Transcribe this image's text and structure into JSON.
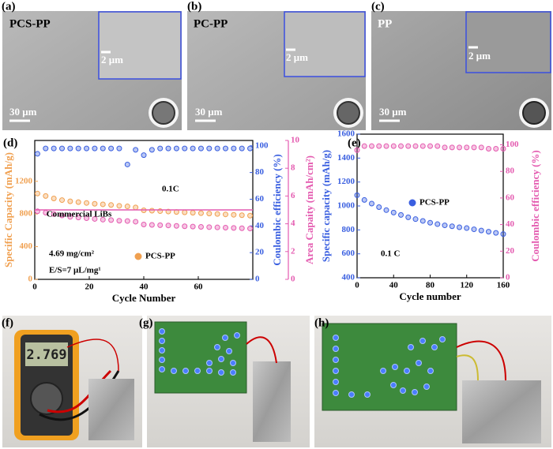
{
  "panel_labels": [
    "(a)",
    "(b)",
    "(c)",
    "(d)",
    "(e)",
    "(f)",
    "(g)",
    "(h)"
  ],
  "sem": [
    {
      "label": "PCS-PP",
      "scale_inset": "2 μm",
      "scale_main": "30 μm"
    },
    {
      "label": "PC-PP",
      "scale_inset": "2 μm",
      "scale_main": "30 μm"
    },
    {
      "label": "PP",
      "scale_inset": "2 μm",
      "scale_main": "30 μm"
    }
  ],
  "multimeter_reading": "2.769",
  "chart_data": [
    {
      "type": "scatter",
      "xlabel": "Cycle Number",
      "ylabel": "Specific Capacity (mAh/g)",
      "y2label": "Coulombic efficiency (%)",
      "y3label": "Area Capaity (mAh/cm²)",
      "xlim": [
        0,
        80
      ],
      "xticks": [
        0,
        20,
        40,
        60
      ],
      "ylim": [
        0,
        1700
      ],
      "yticks": [
        0,
        400,
        800,
        1200
      ],
      "y2lim": [
        0,
        104
      ],
      "y2ticks": [
        0,
        20,
        40,
        60,
        80,
        100
      ],
      "y3lim": [
        0,
        10
      ],
      "y3ticks": [
        0,
        2,
        4,
        6,
        8,
        10
      ],
      "x": [
        1,
        4,
        7,
        10,
        13,
        16,
        19,
        22,
        25,
        28,
        31,
        34,
        37,
        40,
        43,
        46,
        49,
        52,
        55,
        58,
        61,
        64,
        67,
        70,
        73,
        76,
        79
      ],
      "series": [
        {
          "name": "PCS-PP",
          "color": "#f0a050",
          "values": [
            1050,
            1020,
            990,
            970,
            955,
            945,
            935,
            925,
            918,
            910,
            900,
            893,
            880,
            845,
            840,
            835,
            830,
            825,
            820,
            815,
            810,
            805,
            800,
            795,
            790,
            785,
            780
          ]
        },
        {
          "color": "#3a5fe0",
          "axis": "y2",
          "values": [
            94,
            98,
            98,
            98,
            98,
            98,
            98,
            98,
            98,
            98,
            98,
            86,
            97,
            93,
            97,
            98,
            98,
            98,
            98,
            98,
            98,
            98,
            98,
            98,
            98,
            98,
            98
          ]
        },
        {
          "color": "#e45bb0",
          "axis": "y3",
          "values": [
            4.9,
            4.8,
            4.7,
            4.6,
            4.5,
            4.45,
            4.4,
            4.35,
            4.3,
            4.27,
            4.22,
            4.2,
            4.15,
            3.95,
            3.92,
            3.9,
            3.88,
            3.85,
            3.82,
            3.8,
            3.78,
            3.76,
            3.74,
            3.72,
            3.7,
            3.68,
            3.66
          ]
        }
      ],
      "reference_line": {
        "value": 5,
        "axis": "y3",
        "label": "Commercial LiBs"
      },
      "annotations": [
        "0.1C",
        "4.69 mg/cm²",
        "E/S=7 μL/mg¹"
      ]
    },
    {
      "type": "scatter",
      "xlabel": "Cycle number",
      "ylabel": "Specific capacity (mAh/g)",
      "y2label": "Coulombic efficiency (%)",
      "xlim": [
        0,
        160
      ],
      "xticks": [
        0,
        40,
        80,
        120,
        160
      ],
      "ylim": [
        400,
        1600
      ],
      "yticks": [
        400,
        600,
        800,
        1000,
        1200,
        1400,
        1600
      ],
      "y2lim": [
        0,
        108
      ],
      "y2ticks": [
        0,
        20,
        40,
        60,
        80,
        100
      ],
      "x": [
        0,
        8,
        16,
        24,
        32,
        40,
        48,
        56,
        64,
        72,
        80,
        88,
        96,
        104,
        112,
        120,
        128,
        136,
        144,
        152,
        160
      ],
      "series": [
        {
          "name": "PCS-PP",
          "color": "#3a5fe0",
          "values": [
            1090,
            1050,
            1020,
            990,
            965,
            945,
            925,
            905,
            890,
            875,
            860,
            848,
            838,
            830,
            822,
            815,
            805,
            795,
            785,
            775,
            765
          ]
        },
        {
          "color": "#e45bb0",
          "axis": "y2",
          "values": [
            96,
            99,
            99,
            99,
            99,
            99,
            99,
            99,
            99,
            99,
            99,
            99,
            98,
            98,
            98,
            98,
            98,
            98,
            97,
            97,
            97
          ]
        }
      ],
      "annotations": [
        "0.1 C"
      ]
    }
  ]
}
